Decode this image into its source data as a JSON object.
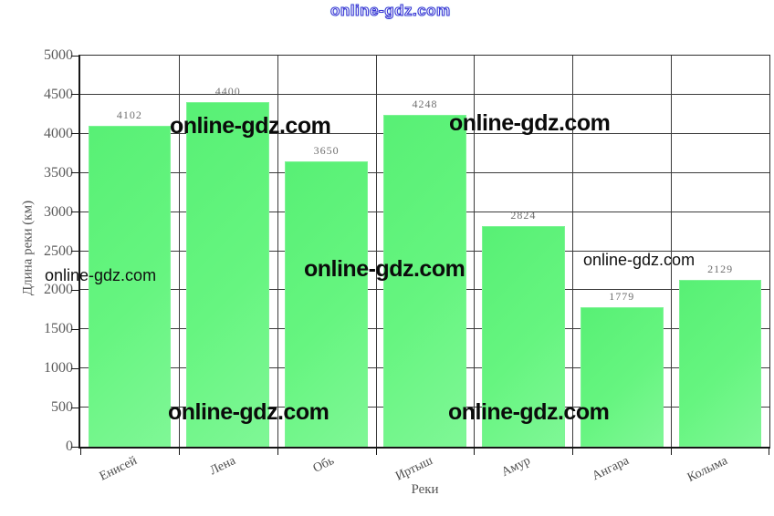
{
  "watermarks": {
    "top": {
      "text": "online-gdz.com"
    },
    "overlays": [
      {
        "text": "online-gdz.com",
        "style": "bold"
      },
      {
        "text": "online-gdz.com",
        "style": "bold"
      },
      {
        "text": "online-gdz.com",
        "style": "small"
      },
      {
        "text": "online-gdz.com",
        "style": "bold"
      },
      {
        "text": "online-gdz.com",
        "style": "small"
      },
      {
        "text": "online-gdz.com",
        "style": "bold"
      },
      {
        "text": "online-gdz.com",
        "style": "bold"
      }
    ]
  },
  "chart_data": {
    "type": "bar",
    "categories": [
      "Енисей",
      "Лена",
      "Обь",
      "Иртыш",
      "Амур",
      "Ангара",
      "Колыма"
    ],
    "values": [
      4102,
      4400,
      3650,
      4248,
      2824,
      1779,
      2129
    ],
    "title": "",
    "xlabel": "Реки",
    "ylabel": "Длина реки (км)",
    "ylim": [
      0,
      5000
    ],
    "yticks": [
      0,
      500,
      1000,
      1500,
      2000,
      2500,
      3000,
      3500,
      4000,
      4500,
      5000
    ],
    "grid": true,
    "legend": "none",
    "value_labels_shown": true,
    "colors": {
      "bar_fill": "#66f580",
      "bar_fill_light": "#7ff796",
      "bar_border": "#7df394",
      "grid_line": "#3b3b3b",
      "axis_line": "#161616",
      "tick_text": "#5a5a5a",
      "watermark_black": "#0b0b0b",
      "watermark_blue_outline": "#3c38d4"
    }
  }
}
